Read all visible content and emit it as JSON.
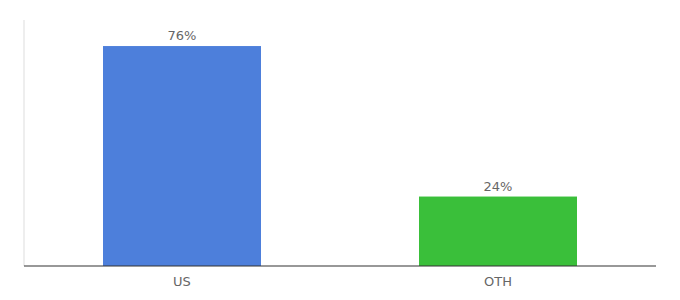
{
  "chart_data": {
    "type": "bar",
    "categories": [
      "US",
      "OTH"
    ],
    "values": [
      76,
      24
    ],
    "value_labels": [
      "76%",
      "24%"
    ],
    "colors": [
      "#4d7fdb",
      "#3abf3a"
    ],
    "ylim": [
      0,
      85
    ],
    "data_labels": true,
    "tick_labels": "x"
  }
}
